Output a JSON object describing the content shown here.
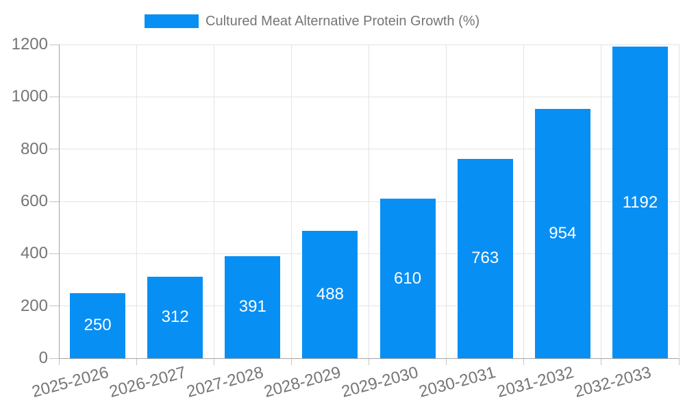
{
  "chart_data": {
    "type": "bar",
    "title": "Cultured Meat Alternative Protein Growth (%)",
    "categories": [
      "2025-2026",
      "2026-2027",
      "2027-2028",
      "2028-2029",
      "2029-2030",
      "2030-2031",
      "2031-2032",
      "2032-2033"
    ],
    "values": [
      250,
      312,
      391,
      488,
      610,
      763,
      954,
      1192
    ],
    "xlabel": "",
    "ylabel": "",
    "ylim": [
      0,
      1200
    ],
    "yticks": [
      0,
      200,
      400,
      600,
      800,
      1000,
      1200
    ],
    "grid": true,
    "x_label_rotation_deg": -15,
    "legend_position": "top-center",
    "value_labels_inside_bars": true
  },
  "colors": {
    "bar": "#088ff4",
    "grid": "#e4e4e4",
    "axis": "#a3a3a3",
    "tick": "#c6c6c6",
    "text": "#757575",
    "value_label": "#ffffff",
    "background": "#ffffff"
  }
}
